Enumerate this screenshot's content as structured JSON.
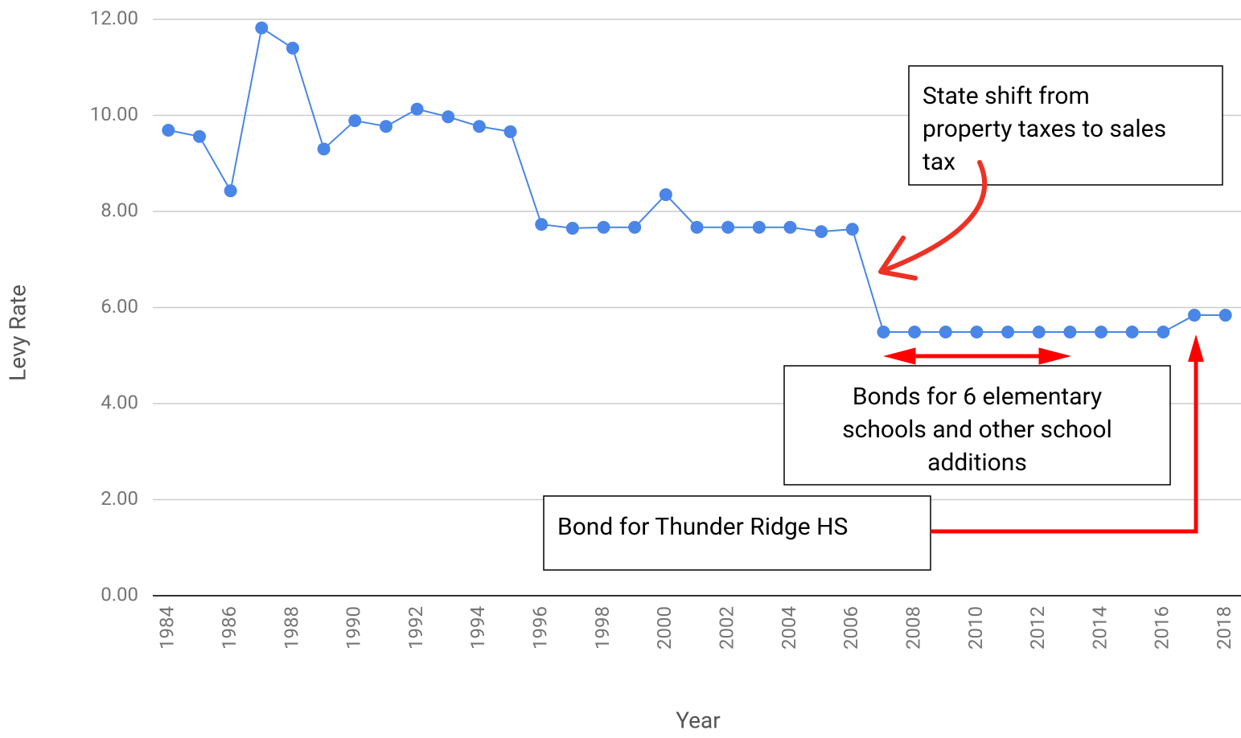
{
  "chart_data": {
    "type": "line",
    "x": [
      1984,
      1985,
      1986,
      1987,
      1988,
      1989,
      1990,
      1991,
      1992,
      1993,
      1994,
      1995,
      1996,
      1997,
      1998,
      1999,
      2000,
      2001,
      2002,
      2003,
      2004,
      2005,
      2006,
      2007,
      2008,
      2009,
      2010,
      2011,
      2012,
      2013,
      2014,
      2015,
      2016,
      2017,
      2018
    ],
    "values": [
      9.69,
      9.56,
      8.43,
      11.82,
      11.4,
      9.3,
      9.89,
      9.77,
      10.13,
      9.97,
      9.77,
      9.66,
      7.73,
      7.65,
      7.67,
      7.67,
      8.35,
      7.67,
      7.67,
      7.67,
      7.67,
      7.58,
      7.63,
      5.49,
      5.49,
      5.49,
      5.49,
      5.49,
      5.49,
      5.49,
      5.49,
      5.49,
      5.49,
      5.84,
      5.84
    ],
    "color": "#4a86e8",
    "xlim": [
      1983.5,
      2018.5
    ],
    "xticks": [
      1984,
      1986,
      1988,
      1990,
      1992,
      1994,
      1996,
      1998,
      2000,
      2002,
      2004,
      2006,
      2008,
      2010,
      2012,
      2014,
      2016,
      2018
    ],
    "ylim": [
      0,
      12
    ],
    "yticks": [
      {
        "value": 0,
        "label": "0.00"
      },
      {
        "value": 2,
        "label": "2.00"
      },
      {
        "value": 4,
        "label": "4.00"
      },
      {
        "value": 6,
        "label": "6.00"
      },
      {
        "value": 8,
        "label": "8.00"
      },
      {
        "value": 10,
        "label": "10.00"
      },
      {
        "value": 12,
        "label": "12.00"
      }
    ],
    "grid": true,
    "x_label": "Year",
    "y_label": "Levy Rate",
    "annotations": [
      {
        "lines": [
          "State shift from",
          "property taxes to sales",
          "tax"
        ]
      },
      {
        "lines": [
          "Bonds for 6 elementary",
          "schools and other school",
          "additions"
        ]
      },
      {
        "lines": [
          "Bond for Thunder Ridge HS"
        ]
      }
    ]
  }
}
